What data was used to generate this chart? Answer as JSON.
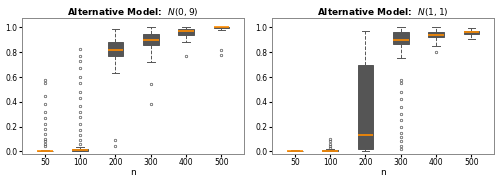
{
  "left_title": "Alternative Model:  $N(0,9)$",
  "right_title": "Alternative Model:  $N(1,1)$",
  "xlabel": "n",
  "n_values": [
    50,
    100,
    200,
    300,
    400,
    500
  ],
  "left_stats": {
    "50": {
      "med": 0.003,
      "q1": 0.001,
      "q3": 0.006,
      "whislo": 0.0,
      "whishi": 0.012,
      "fliers_low": [],
      "fliers_high": [
        0.58,
        0.55,
        0.45,
        0.38,
        0.32,
        0.27,
        0.22,
        0.18,
        0.14,
        0.1,
        0.08,
        0.06,
        0.04
      ]
    },
    "100": {
      "med": 0.01,
      "q1": 0.003,
      "q3": 0.018,
      "whislo": 0.0,
      "whishi": 0.038,
      "fliers_low": [],
      "fliers_high": [
        0.83,
        0.77,
        0.73,
        0.67,
        0.6,
        0.55,
        0.48,
        0.43,
        0.37,
        0.32,
        0.28,
        0.22,
        0.17,
        0.13,
        0.09,
        0.06
      ]
    },
    "200": {
      "med": 0.82,
      "q1": 0.77,
      "q3": 0.88,
      "whislo": 0.63,
      "whishi": 0.99,
      "fliers_low": [
        0.09,
        0.04
      ],
      "fliers_high": []
    },
    "300": {
      "med": 0.9,
      "q1": 0.86,
      "q3": 0.95,
      "whislo": 0.72,
      "whishi": 1.0,
      "fliers_low": [
        0.54,
        0.38
      ],
      "fliers_high": []
    },
    "400": {
      "med": 0.97,
      "q1": 0.94,
      "q3": 0.99,
      "whislo": 0.88,
      "whishi": 1.0,
      "fliers_low": [
        0.77
      ],
      "fliers_high": []
    },
    "500": {
      "med": 1.0,
      "q1": 0.995,
      "q3": 1.0,
      "whislo": 0.98,
      "whishi": 1.0,
      "fliers_low": [
        0.82,
        0.78
      ],
      "fliers_high": []
    }
  },
  "right_stats": {
    "50": {
      "med": 0.002,
      "q1": 0.001,
      "q3": 0.004,
      "whislo": 0.0,
      "whishi": 0.008,
      "fliers_low": [],
      "fliers_high": []
    },
    "100": {
      "med": 0.004,
      "q1": 0.001,
      "q3": 0.01,
      "whislo": 0.0,
      "whishi": 0.02,
      "fliers_low": [],
      "fliers_high": [
        0.1,
        0.08,
        0.06,
        0.04,
        0.03
      ]
    },
    "200": {
      "med": 0.13,
      "q1": 0.02,
      "q3": 0.7,
      "whislo": 0.0,
      "whishi": 0.97,
      "fliers_low": [],
      "fliers_high": []
    },
    "300": {
      "med": 0.9,
      "q1": 0.87,
      "q3": 0.96,
      "whislo": 0.75,
      "whishi": 1.0,
      "fliers_low": [
        0.58,
        0.55,
        0.48,
        0.42,
        0.36,
        0.3,
        0.25,
        0.2,
        0.15,
        0.12,
        0.08,
        0.04,
        0.02
      ],
      "fliers_high": []
    },
    "400": {
      "med": 0.94,
      "q1": 0.92,
      "q3": 0.96,
      "whislo": 0.85,
      "whishi": 1.0,
      "fliers_low": [
        0.8
      ],
      "fliers_high": []
    },
    "500": {
      "med": 0.96,
      "q1": 0.945,
      "q3": 0.975,
      "whislo": 0.905,
      "whishi": 0.995,
      "fliers_low": [],
      "fliers_high": []
    }
  },
  "box_edge_color": "#555555",
  "median_color": "#ff8c00",
  "flier_marker_color": "#555555",
  "background_color": "#ffffff",
  "ylim": [
    -0.02,
    1.08
  ],
  "yticks": [
    0.0,
    0.2,
    0.4,
    0.6,
    0.8,
    1.0
  ],
  "title_fontsize": 6.5,
  "tick_fontsize": 5.5,
  "xlabel_fontsize": 6.5
}
